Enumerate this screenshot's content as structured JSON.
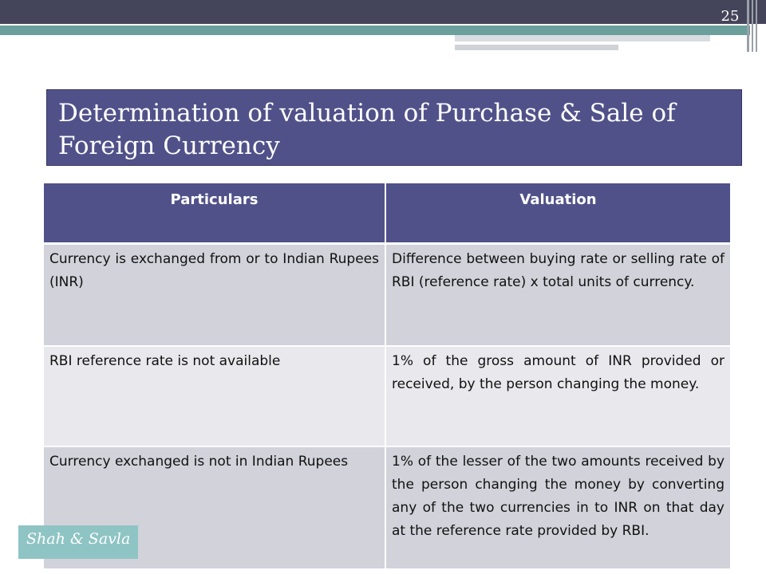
{
  "slide": {
    "page_number": "25"
  },
  "title": "Determination of valuation of Purchase & Sale of Foreign Currency",
  "table": {
    "headers": [
      "Particulars",
      "Valuation"
    ],
    "rows": [
      [
        "Currency is exchanged from or to Indian Rupees (INR)",
        "Difference between buying rate or selling rate of RBI (reference rate) x total units of currency."
      ],
      [
        "RBI reference rate is not available",
        "1% of the gross amount of INR provided or received, by the person changing the money."
      ],
      [
        "Currency exchanged is not in Indian Rupees",
        "1% of the lesser of the two amounts received  by the person changing the money by converting any of the two currencies in to INR on that day at the reference rate provided by RBI."
      ]
    ]
  },
  "footer": {
    "label": "Shah & Savla"
  },
  "colors": {
    "header_bar": "#44455a",
    "accent_teal": "#6a9f9b",
    "title_fill": "#51518a",
    "row_dark": "#d1d2da",
    "row_light": "#e8e8ed",
    "footer_fill": "#8fc4c4"
  }
}
